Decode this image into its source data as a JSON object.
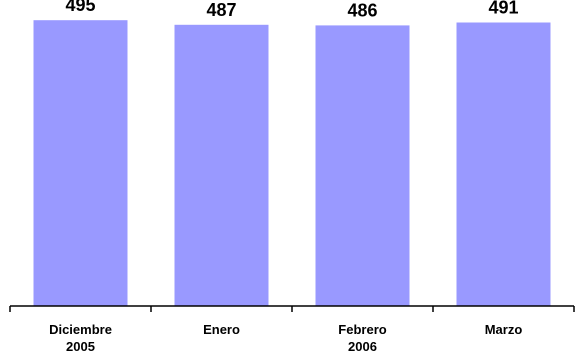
{
  "chart_data": {
    "type": "bar",
    "categories": [
      [
        "Diciembre",
        "2005"
      ],
      [
        "Enero"
      ],
      [
        "Febrero",
        "2006"
      ],
      [
        "Marzo"
      ]
    ],
    "values": [
      495,
      487,
      486,
      491
    ],
    "data_labels": [
      "495",
      "487",
      "486",
      "491"
    ],
    "ylim": [
      0,
      530
    ],
    "bar_color": "#9999ff",
    "axis_color": "#000000",
    "grid": false,
    "legend": "none"
  }
}
